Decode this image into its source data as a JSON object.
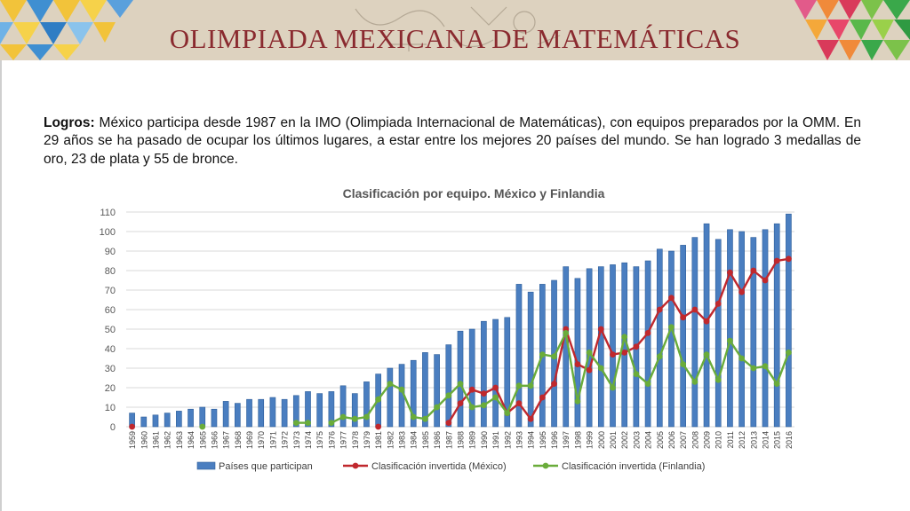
{
  "header": {
    "title": "OLIMPIADA MEXICANA DE MATEMÁTICAS"
  },
  "intro": {
    "label": "Logros:",
    "text": " México participa desde 1987 en la IMO (Olimpiada Internacional de Matemáticas), con equipos preparados por la OMM. En 29 años se ha pasado de ocupar los últimos lugares, a estar entre los mejores 20 países del mundo. Se han logrado 3 medallas de oro, 23 de plata y 55 de bronce."
  },
  "chart_data": {
    "type": "bar",
    "title": "Clasificación por equipo. México y Finlandia",
    "ylim": [
      0,
      110
    ],
    "yticks": [
      0,
      10,
      20,
      30,
      40,
      50,
      60,
      70,
      80,
      90,
      100,
      110
    ],
    "grid": true,
    "legend_position": "bottom",
    "categories": [
      "1959",
      "1960",
      "1961",
      "1962",
      "1963",
      "1964",
      "1965",
      "1966",
      "1967",
      "1968",
      "1969",
      "1970",
      "1971",
      "1972",
      "1973",
      "1974",
      "1975",
      "1976",
      "1977",
      "1978",
      "1979",
      "1981",
      "1982",
      "1983",
      "1984",
      "1985",
      "1986",
      "1987",
      "1988",
      "1989",
      "1990",
      "1991",
      "1992",
      "1993",
      "1994",
      "1995",
      "1996",
      "1997",
      "1998",
      "1999",
      "2000",
      "2001",
      "2002",
      "2003",
      "2004",
      "2005",
      "2006",
      "2007",
      "2008",
      "2009",
      "2010",
      "2011",
      "2012",
      "2013",
      "2014",
      "2015",
      "2016"
    ],
    "series": [
      {
        "name": "Países que participan",
        "kind": "bar",
        "color": "#4a7ec0",
        "values": [
          7,
          5,
          6,
          7,
          8,
          9,
          10,
          9,
          13,
          12,
          14,
          14,
          15,
          14,
          16,
          18,
          17,
          18,
          21,
          17,
          23,
          27,
          30,
          32,
          34,
          38,
          37,
          42,
          49,
          50,
          54,
          55,
          56,
          73,
          69,
          73,
          75,
          82,
          76,
          81,
          82,
          83,
          84,
          82,
          85,
          91,
          90,
          93,
          97,
          104,
          96,
          101,
          100,
          97,
          101,
          104,
          109
        ]
      },
      {
        "name": "Clasificación invertida (México)",
        "kind": "line",
        "color": "#c0282d",
        "values": [
          0,
          null,
          null,
          null,
          null,
          null,
          null,
          null,
          null,
          null,
          null,
          null,
          null,
          null,
          null,
          null,
          null,
          null,
          null,
          null,
          null,
          0,
          null,
          null,
          null,
          null,
          null,
          2,
          12,
          19,
          17,
          20,
          7,
          12,
          4,
          15,
          22,
          50,
          32,
          29,
          50,
          37,
          38,
          41,
          48,
          60,
          66,
          56,
          60,
          54,
          63,
          79,
          69,
          80,
          75,
          85,
          86
        ]
      },
      {
        "name": "Clasificación invertida (Finlandia)",
        "kind": "line",
        "color": "#6aac3a",
        "values": [
          null,
          null,
          null,
          null,
          null,
          null,
          0,
          null,
          null,
          null,
          null,
          null,
          null,
          null,
          2,
          2,
          null,
          2,
          5,
          4,
          5,
          14,
          22,
          19,
          5,
          4,
          10,
          16,
          22,
          10,
          11,
          15,
          7,
          21,
          21,
          37,
          36,
          48,
          13,
          38,
          30,
          20,
          46,
          27,
          22,
          36,
          51,
          32,
          23,
          37,
          24,
          44,
          35,
          30,
          31,
          22,
          38
        ]
      }
    ]
  }
}
